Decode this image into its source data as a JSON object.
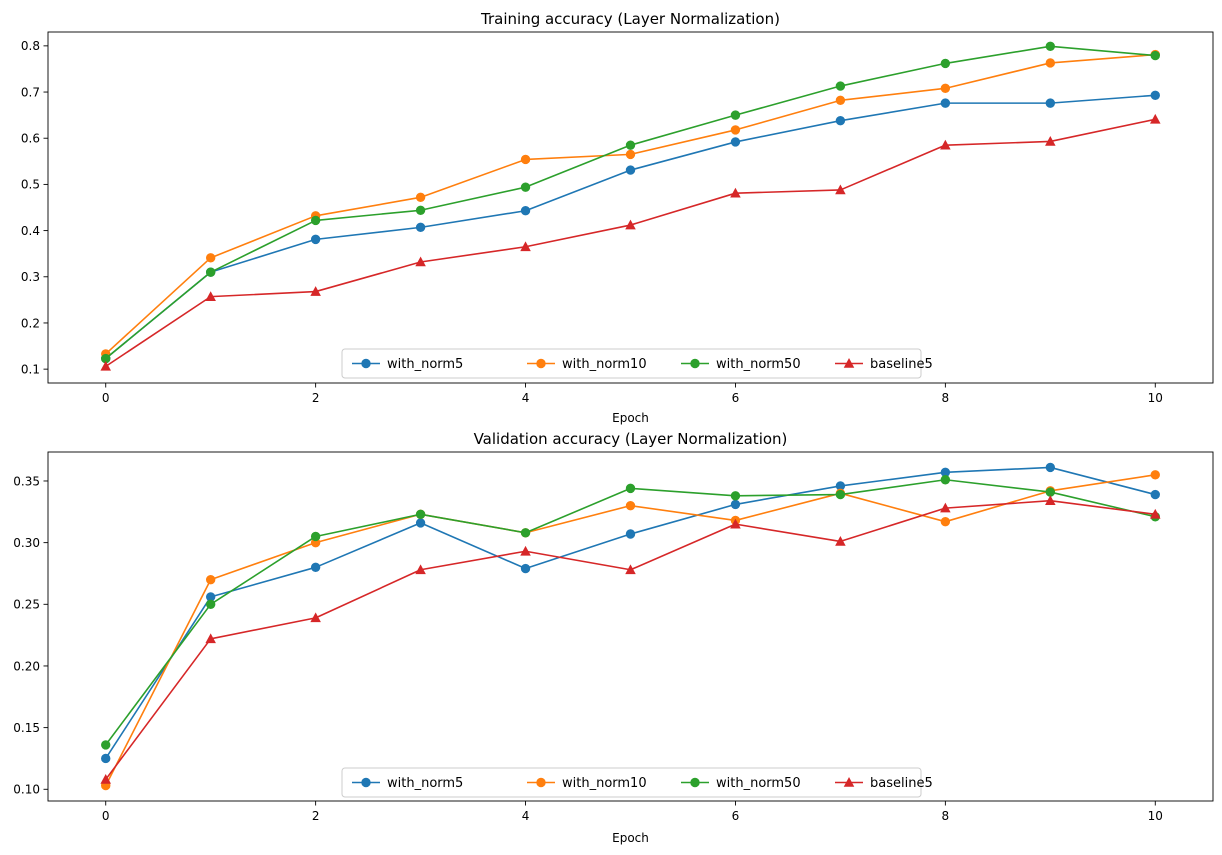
{
  "chart_data": [
    {
      "type": "line",
      "title": "Training accuracy (Layer Normalization)",
      "xlabel": "Epoch",
      "ylabel": "",
      "x": [
        0,
        1,
        2,
        3,
        4,
        5,
        6,
        7,
        8,
        9,
        10
      ],
      "xlim": [
        -0.55,
        10.55
      ],
      "ylim": [
        0.07,
        0.83
      ],
      "xticks": [
        0,
        2,
        4,
        6,
        8,
        10
      ],
      "xtick_labels": [
        "0",
        "2",
        "4",
        "6",
        "8",
        "10"
      ],
      "yticks": [
        0.1,
        0.2,
        0.3,
        0.4,
        0.5,
        0.6,
        0.7,
        0.8
      ],
      "ytick_labels": [
        "0.1",
        "0.2",
        "0.3",
        "0.4",
        "0.5",
        "0.6",
        "0.7",
        "0.8"
      ],
      "grid": false,
      "legend_position": "lower-center",
      "series": [
        {
          "name": "with_norm5",
          "color": "#1f77b4",
          "marker": "circle",
          "values": [
            0.123,
            0.31,
            0.381,
            0.407,
            0.443,
            0.531,
            0.592,
            0.638,
            0.676,
            0.676,
            0.693
          ]
        },
        {
          "name": "with_norm10",
          "color": "#ff7f0e",
          "marker": "circle",
          "values": [
            0.133,
            0.341,
            0.432,
            0.472,
            0.554,
            0.565,
            0.618,
            0.682,
            0.708,
            0.763,
            0.781
          ]
        },
        {
          "name": "with_norm50",
          "color": "#2ca02c",
          "marker": "circle",
          "values": [
            0.123,
            0.31,
            0.422,
            0.444,
            0.494,
            0.585,
            0.65,
            0.713,
            0.762,
            0.799,
            0.779
          ]
        },
        {
          "name": "baseline5",
          "color": "#d62728",
          "marker": "triangle",
          "values": [
            0.106,
            0.257,
            0.268,
            0.332,
            0.365,
            0.412,
            0.481,
            0.488,
            0.585,
            0.593,
            0.641
          ]
        }
      ]
    },
    {
      "type": "line",
      "title": "Validation accuracy (Layer Normalization)",
      "xlabel": "Epoch",
      "ylabel": "",
      "x": [
        0,
        1,
        2,
        3,
        4,
        5,
        6,
        7,
        8,
        9,
        10
      ],
      "xlim": [
        -0.55,
        10.55
      ],
      "ylim": [
        0.0905,
        0.3735
      ],
      "xticks": [
        0,
        2,
        4,
        6,
        8,
        10
      ],
      "xtick_labels": [
        "0",
        "2",
        "4",
        "6",
        "8",
        "10"
      ],
      "yticks": [
        0.1,
        0.15,
        0.2,
        0.25,
        0.3,
        0.35
      ],
      "ytick_labels": [
        "0.10",
        "0.15",
        "0.20",
        "0.25",
        "0.30",
        "0.35"
      ],
      "grid": false,
      "legend_position": "lower-center",
      "series": [
        {
          "name": "with_norm5",
          "color": "#1f77b4",
          "marker": "circle",
          "values": [
            0.125,
            0.256,
            0.28,
            0.316,
            0.279,
            0.307,
            0.331,
            0.346,
            0.357,
            0.361,
            0.339
          ]
        },
        {
          "name": "with_norm10",
          "color": "#ff7f0e",
          "marker": "circle",
          "values": [
            0.103,
            0.27,
            0.3,
            0.323,
            0.308,
            0.33,
            0.318,
            0.34,
            0.317,
            0.342,
            0.355
          ]
        },
        {
          "name": "with_norm50",
          "color": "#2ca02c",
          "marker": "circle",
          "values": [
            0.136,
            0.25,
            0.305,
            0.323,
            0.308,
            0.344,
            0.338,
            0.339,
            0.351,
            0.341,
            0.321
          ]
        },
        {
          "name": "baseline5",
          "color": "#d62728",
          "marker": "triangle",
          "values": [
            0.108,
            0.222,
            0.239,
            0.278,
            0.293,
            0.278,
            0.315,
            0.301,
            0.328,
            0.334,
            0.323
          ]
        }
      ]
    }
  ]
}
